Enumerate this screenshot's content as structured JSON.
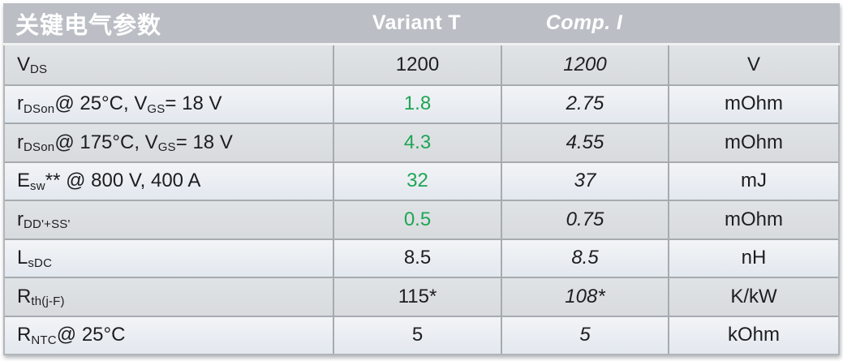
{
  "header": {
    "param_label": "关键电气参数",
    "variant_label": "Variant T",
    "comp_label": "Comp. I",
    "unit_label": ""
  },
  "colors": {
    "header_bg": "#bbbfc5",
    "row_dark": "#dcdfe2",
    "row_light": "#eef0f3",
    "line": "#a6abb0",
    "green": "#1fa555",
    "text": "#1c1e21"
  },
  "rows": [
    {
      "param": [
        {
          "text": "V"
        },
        {
          "text": "DS",
          "sub": true
        }
      ],
      "variant_t": "1200",
      "variant_green": false,
      "comp_i": "1200",
      "unit": "V"
    },
    {
      "param": [
        {
          "text": "r"
        },
        {
          "text": "DSon",
          "sub": true
        },
        {
          "text": " @ 25°C, V"
        },
        {
          "text": "GS",
          "sub": true
        },
        {
          "text": " = 18 V"
        }
      ],
      "variant_t": "1.8",
      "variant_green": true,
      "comp_i": "2.75",
      "unit": "mOhm"
    },
    {
      "param": [
        {
          "text": "r"
        },
        {
          "text": "DSon",
          "sub": true
        },
        {
          "text": " @ 175°C, V"
        },
        {
          "text": "GS",
          "sub": true
        },
        {
          "text": " = 18 V"
        }
      ],
      "variant_t": "4.3",
      "variant_green": true,
      "comp_i": "4.55",
      "unit": "mOhm"
    },
    {
      "param": [
        {
          "text": "E"
        },
        {
          "text": "sw",
          "sub": true
        },
        {
          "text": "** @ 800 V, 400 A"
        }
      ],
      "variant_t": "32",
      "variant_green": true,
      "comp_i": "37",
      "unit": "mJ"
    },
    {
      "param": [
        {
          "text": "r"
        },
        {
          "text": "DD'+SS'",
          "sub": true
        }
      ],
      "variant_t": "0.5",
      "variant_green": true,
      "comp_i": "0.75",
      "unit": "mOhm"
    },
    {
      "param": [
        {
          "text": "L"
        },
        {
          "text": "sDC",
          "sub": true
        }
      ],
      "variant_t": "8.5",
      "variant_green": false,
      "comp_i": "8.5",
      "unit": "nH"
    },
    {
      "param": [
        {
          "text": "R"
        },
        {
          "text": "th(j-F)",
          "sub": true
        }
      ],
      "variant_t": "115*",
      "variant_green": false,
      "comp_i": "108*",
      "unit": "K/kW"
    },
    {
      "param": [
        {
          "text": "R"
        },
        {
          "text": "NTC",
          "sub": true
        },
        {
          "text": " @ 25°C"
        }
      ],
      "variant_t": "5",
      "variant_green": false,
      "comp_i": "5",
      "unit": "kOhm"
    }
  ]
}
